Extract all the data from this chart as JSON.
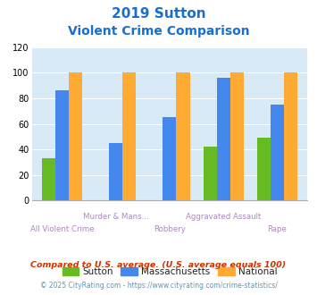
{
  "title_line1": "2019 Sutton",
  "title_line2": "Violent Crime Comparison",
  "cat_line1": [
    "",
    "Murder & Mans...",
    "",
    "Aggravated Assault",
    ""
  ],
  "cat_line2": [
    "All Violent Crime",
    "",
    "Robbery",
    "",
    "Rape"
  ],
  "sutton": [
    33,
    0,
    0,
    42,
    49
  ],
  "massachusetts": [
    86,
    45,
    65,
    96,
    75
  ],
  "national": [
    100,
    100,
    100,
    100,
    100
  ],
  "sutton_color": "#66bb22",
  "mass_color": "#4488ee",
  "national_color": "#ffaa33",
  "ylim": [
    0,
    120
  ],
  "yticks": [
    0,
    20,
    40,
    60,
    80,
    100,
    120
  ],
  "bg_color": "#d8eaf5",
  "title_color": "#1a6fcc",
  "xtick_color": "#aa88bb",
  "footnote1": "Compared to U.S. average. (U.S. average equals 100)",
  "footnote2": "© 2025 CityRating.com - https://www.cityrating.com/crime-statistics/",
  "footnote1_color": "#cc3300",
  "footnote2_color": "#5599bb",
  "legend_text_color": "#222222"
}
